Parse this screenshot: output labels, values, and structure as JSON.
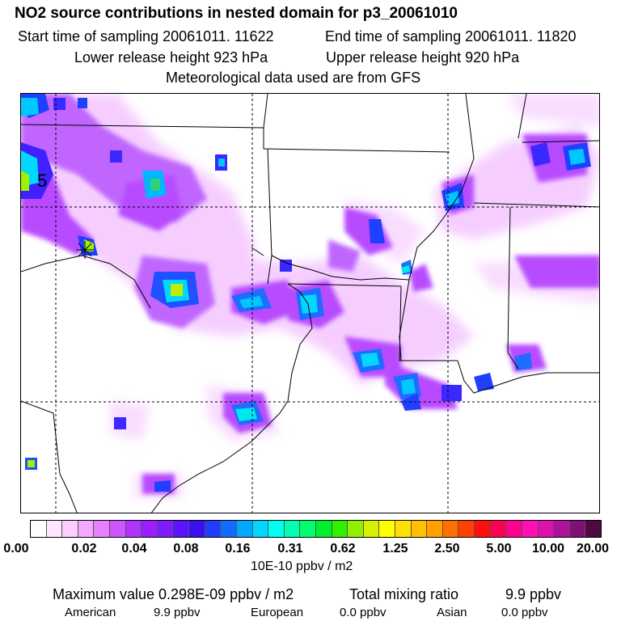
{
  "header": {
    "title": "NO2 source contributions in nested domain for p3_20061010",
    "start_time": "Start time of sampling 20061011. 11622",
    "end_time": "End time of sampling 20061011. 11820",
    "lower_release": "Lower release height  923 hPa",
    "upper_release": "Upper release height  920 hPa",
    "met_data": "Meteorological data used are from GFS"
  },
  "map": {
    "marker_label": "5"
  },
  "colorbar": {
    "tick_labels": [
      "0.00",
      "0.02",
      "0.04",
      "0.08",
      "0.16",
      "0.31",
      "0.62",
      "1.25",
      "2.50",
      "5.00",
      "10.00",
      "20.00"
    ],
    "colors": [
      "#ffffff",
      "#ffe6ff",
      "#ffccff",
      "#f2aaff",
      "#e680ff",
      "#cc55ff",
      "#b033ff",
      "#9a1eff",
      "#7f1cff",
      "#5a14ff",
      "#3a10f0",
      "#1f3cff",
      "#0f6cff",
      "#00a8ff",
      "#00d8ff",
      "#00ffee",
      "#00ffb0",
      "#00ff70",
      "#00f030",
      "#30f000",
      "#90f000",
      "#d8f000",
      "#ffff00",
      "#ffe000",
      "#ffc000",
      "#ffa000",
      "#ff7000",
      "#ff4000",
      "#ff1010",
      "#ff0050",
      "#ff0090",
      "#ff10b0",
      "#e010b0",
      "#b0109a",
      "#801075",
      "#500a40"
    ],
    "units": "10E-10 ppbv / m2"
  },
  "summary": {
    "max_value": "Maximum value  0.298E-09 ppbv / m2",
    "total_mixing": "Total mixing ratio",
    "total_value": "9.9 ppbv",
    "american_label": "American",
    "american_value": "9.9 ppbv",
    "european_label": "European",
    "european_value": "0.0 ppbv",
    "asian_label": "Asian",
    "asian_value": "0.0 ppbv"
  }
}
